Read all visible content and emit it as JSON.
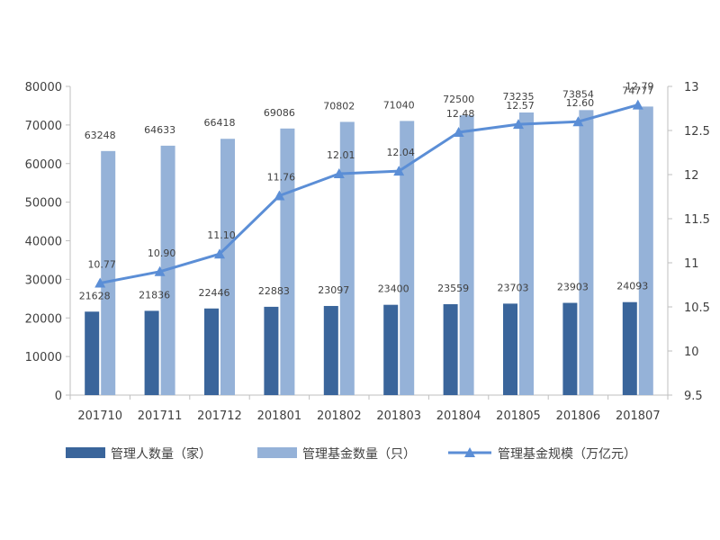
{
  "chart_data": {
    "type": "bar",
    "categories": [
      "201710",
      "201711",
      "201712",
      "201801",
      "201802",
      "201803",
      "201804",
      "201805",
      "201806",
      "201807"
    ],
    "series": [
      {
        "name": "管理人数量（家）",
        "type": "bar",
        "axis": "left",
        "color": "#3a659b",
        "values": [
          21628,
          21836,
          22446,
          22883,
          23097,
          23400,
          23559,
          23703,
          23903,
          24093
        ]
      },
      {
        "name": "管理基金数量（只）",
        "type": "bar",
        "axis": "left",
        "color": "#95b2d8",
        "values": [
          63248,
          64633,
          66418,
          69086,
          70802,
          71040,
          72500,
          73235,
          73854,
          74777
        ]
      },
      {
        "name": "管理基金规模（万亿元）",
        "type": "line",
        "axis": "right",
        "color": "#5b8ed6",
        "marker": "triangle",
        "values": [
          10.77,
          10.9,
          11.1,
          11.76,
          12.01,
          12.04,
          12.48,
          12.57,
          12.6,
          12.79
        ],
        "labels": [
          "10.77",
          "10.90",
          "11.10",
          "11.76",
          "12.01",
          "12.04",
          "12.48",
          "12.57",
          "12.60",
          "12.79"
        ]
      }
    ],
    "y_left": {
      "min": 0,
      "max": 80000,
      "ticks": [
        0,
        10000,
        20000,
        30000,
        40000,
        50000,
        60000,
        70000,
        80000
      ],
      "tick_labels": [
        "0",
        "10000",
        "20000",
        "30000",
        "40000",
        "50000",
        "60000",
        "70000",
        "80000"
      ]
    },
    "y_right": {
      "min": 9.5,
      "max": 13,
      "ticks": [
        9.5,
        10,
        10.5,
        11,
        11.5,
        12,
        12.5,
        13
      ],
      "tick_labels": [
        "9.5",
        "10",
        "10.5",
        "11",
        "11.5",
        "12",
        "12.5",
        "13"
      ]
    },
    "grid": false,
    "legend_position": "bottom"
  }
}
